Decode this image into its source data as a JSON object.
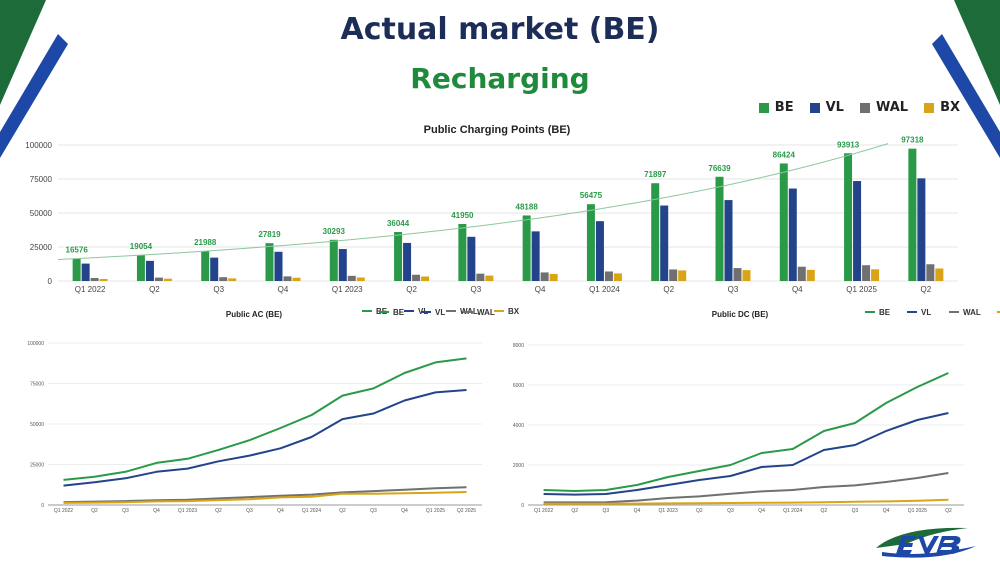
{
  "page": {
    "title": "Actual market (BE)",
    "subtitle": "Recharging"
  },
  "colors": {
    "BE": "#2a9a49",
    "VL": "#23448a",
    "WAL": "#707070",
    "BX": "#d9a516",
    "trend": "#8fc79e",
    "brand_green": "#1e6b3a",
    "brand_blue": "#1d48a8"
  },
  "legend_top": [
    "BE",
    "VL",
    "WAL",
    "BX"
  ],
  "chart_data": [
    {
      "id": "public-charging-points",
      "type": "bar",
      "title": "Public Charging Points (BE)",
      "categories": [
        "Q1 2022",
        "Q2",
        "Q3",
        "Q4",
        "Q1 2023",
        "Q2",
        "Q3",
        "Q4",
        "Q1 2024",
        "Q2",
        "Q3",
        "Q4",
        "Q1 2025",
        "Q2"
      ],
      "series": [
        {
          "name": "BE",
          "values": [
            16576,
            19054,
            21988,
            27819,
            30293,
            36044,
            41950,
            48188,
            56475,
            71897,
            76639,
            86424,
            93913,
            97318
          ]
        },
        {
          "name": "VL",
          "values": [
            12800,
            14800,
            17200,
            21500,
            23500,
            28000,
            32500,
            36500,
            44000,
            55500,
            59500,
            68000,
            73500,
            75500
          ]
        },
        {
          "name": "WAL",
          "values": [
            2200,
            2500,
            2800,
            3400,
            3800,
            4600,
            5400,
            6300,
            7000,
            8500,
            9500,
            10500,
            11600,
            12300
          ]
        },
        {
          "name": "BX",
          "values": [
            1500,
            1700,
            1900,
            2400,
            2600,
            3300,
            4000,
            5200,
            5600,
            7800,
            8000,
            8200,
            8600,
            9200
          ]
        }
      ],
      "data_labels": [
        "16576",
        "19054",
        "21988",
        "27819",
        "30293",
        "36044",
        "41950",
        "48188",
        "56475",
        "71897",
        "76639",
        "86424",
        "93913",
        "97318"
      ],
      "y_ticks": [
        "0",
        "25000",
        "50000",
        "75000",
        "100000"
      ],
      "ylim": [
        0,
        100000
      ],
      "trendline": {
        "series": "BE",
        "from": 15800,
        "to": 101000
      },
      "legend": [
        "BE",
        "VL",
        "WAL",
        "BX"
      ]
    },
    {
      "id": "public-ac",
      "type": "line",
      "title": "Public AC (BE)",
      "categories": [
        "Q1 2022",
        "Q2",
        "Q3",
        "Q4",
        "Q1 2023",
        "Q2",
        "Q3",
        "Q4",
        "Q1 2024",
        "Q2",
        "Q3",
        "Q4",
        "Q1 2025",
        "Q2 2025"
      ],
      "series": [
        {
          "name": "BE",
          "values": [
            15500,
            17500,
            20500,
            26000,
            28500,
            34000,
            40000,
            47500,
            55500,
            67500,
            72000,
            81500,
            88000,
            90500
          ]
        },
        {
          "name": "VL",
          "values": [
            12000,
            14000,
            16500,
            20500,
            22500,
            27000,
            30500,
            35000,
            42000,
            53000,
            56500,
            64500,
            69500,
            71000
          ]
        },
        {
          "name": "WAL",
          "values": [
            1800,
            2100,
            2400,
            2900,
            3300,
            4100,
            4900,
            5700,
            6400,
            7800,
            8600,
            9400,
            10300,
            10900
          ]
        },
        {
          "name": "BX",
          "values": [
            1300,
            1500,
            1700,
            2200,
            2400,
            3000,
            3600,
            4700,
            5100,
            6900,
            7000,
            7200,
            7500,
            8000
          ]
        }
      ],
      "y_ticks": [
        "0",
        "25000",
        "50000",
        "75000",
        "100000"
      ],
      "ylim": [
        0,
        100000
      ],
      "legend": [
        "BE",
        "VL",
        "WAL",
        "BX"
      ]
    },
    {
      "id": "public-dc",
      "type": "line",
      "title": "Public DC (BE)",
      "categories": [
        "Q1 2022",
        "Q2",
        "Q3",
        "Q4",
        "Q1 2023",
        "Q2",
        "Q3",
        "Q4",
        "Q1 2024",
        "Q2",
        "Q3",
        "Q4",
        "Q1 2025",
        "Q2"
      ],
      "series": [
        {
          "name": "BE",
          "values": [
            750,
            700,
            750,
            1000,
            1400,
            1700,
            2000,
            2600,
            2800,
            3700,
            4100,
            5100,
            5900,
            6600
          ]
        },
        {
          "name": "VL",
          "values": [
            550,
            520,
            550,
            750,
            1000,
            1250,
            1450,
            1900,
            2000,
            2750,
            3000,
            3700,
            4250,
            4600
          ]
        },
        {
          "name": "WAL",
          "values": [
            130,
            130,
            140,
            220,
            350,
            430,
            560,
            680,
            750,
            900,
            980,
            1150,
            1350,
            1600
          ]
        },
        {
          "name": "BX",
          "values": [
            60,
            60,
            60,
            70,
            80,
            90,
            100,
            110,
            120,
            140,
            160,
            180,
            210,
            260
          ]
        }
      ],
      "y_ticks": [
        "0",
        "2000",
        "4000",
        "6000",
        "8000"
      ],
      "ylim": [
        0,
        8000
      ],
      "legend": [
        "BE",
        "VL",
        "WAL",
        "BX"
      ]
    }
  ]
}
